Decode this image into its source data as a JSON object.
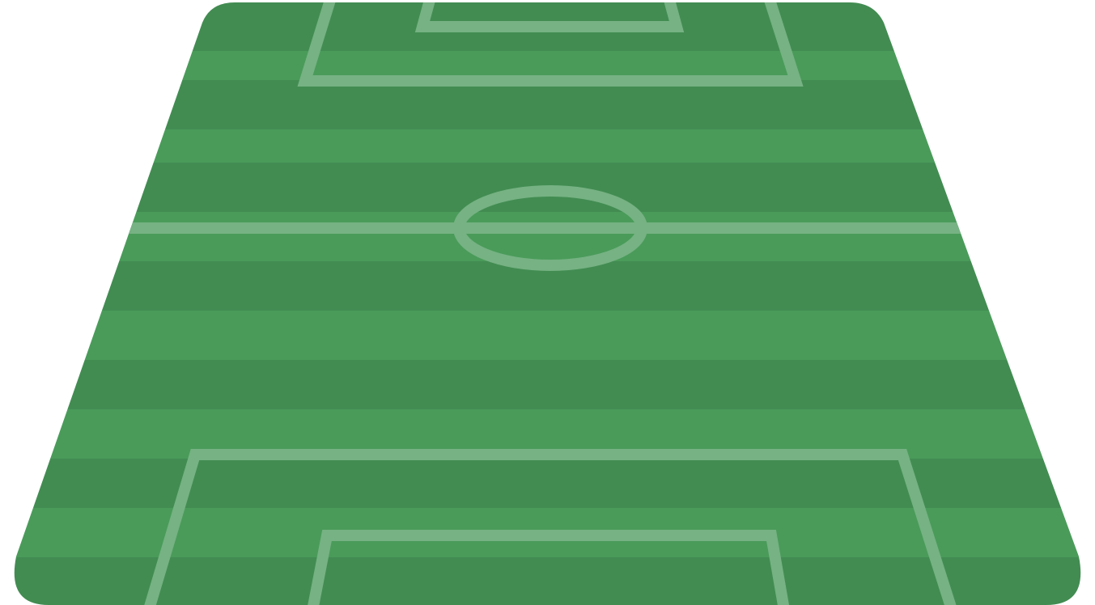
{
  "pitch": {
    "stripe_count": 12,
    "colors": {
      "stripe_dark": "#428c52",
      "stripe_light": "#4a9b5a",
      "line": "#76b283",
      "background": "#ffffff"
    }
  }
}
